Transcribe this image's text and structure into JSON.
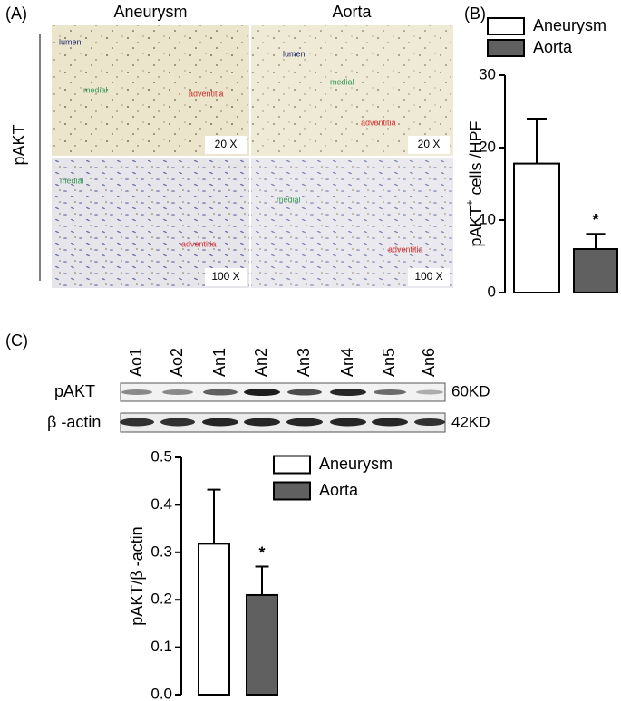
{
  "panel_a": {
    "label": "(A)",
    "columns": [
      "Aneurysm",
      "Aorta"
    ],
    "row": "pAKT",
    "images": [
      {
        "lumen": "lumen",
        "medial": "medial",
        "adventitia": "adventitia",
        "magnification": "20 X"
      },
      {
        "lumen": "lumen",
        "medial": "medial",
        "adventitia": "adventitia",
        "magnification": "20 X"
      },
      {
        "medial": "medial",
        "adventitia": "adventitia",
        "magnification": "100 X"
      },
      {
        "medial": "medial",
        "adventitia": "adventitia",
        "magnification": "100 X"
      }
    ]
  },
  "panel_b_label": "(B)",
  "panel_c": {
    "label": "(C)",
    "lanes": [
      "Ao1",
      "Ao2",
      "An1",
      "An2",
      "An3",
      "An4",
      "An5",
      "An6"
    ],
    "rows": [
      {
        "name": "pAKT",
        "size": "60KD"
      },
      {
        "name": "β -actin",
        "size": "42KD"
      }
    ]
  },
  "chart_data": [
    {
      "type": "bar",
      "ylabel": "pAKT",
      "ylabel_sup": "+",
      "ylabel_rest": " cells /HPF",
      "series": [
        {
          "name": "Aneurysm",
          "color": "#ffffff",
          "values": [
            17.8
          ],
          "errors": [
            6.2
          ]
        },
        {
          "name": "Aorta",
          "color": "#606060",
          "values": [
            6
          ],
          "errors": [
            2.1
          ]
        }
      ],
      "annotation": "*",
      "ylim": [
        0,
        30
      ],
      "yticks": [
        0,
        10,
        20,
        30
      ]
    },
    {
      "type": "bar",
      "ylabel": "pAKT/β -actin",
      "series": [
        {
          "name": "Aneurysm",
          "color": "#ffffff",
          "values": [
            0.318
          ],
          "errors": [
            0.114
          ]
        },
        {
          "name": "Aorta",
          "color": "#606060",
          "values": [
            0.21
          ],
          "errors": [
            0.06
          ]
        }
      ],
      "annotation": "*",
      "ylim": [
        0,
        0.5
      ],
      "yticks": [
        {
          "value": 0,
          "label": "0.0"
        },
        0.1,
        0.2,
        0.3,
        0.4,
        0.5
      ]
    }
  ]
}
